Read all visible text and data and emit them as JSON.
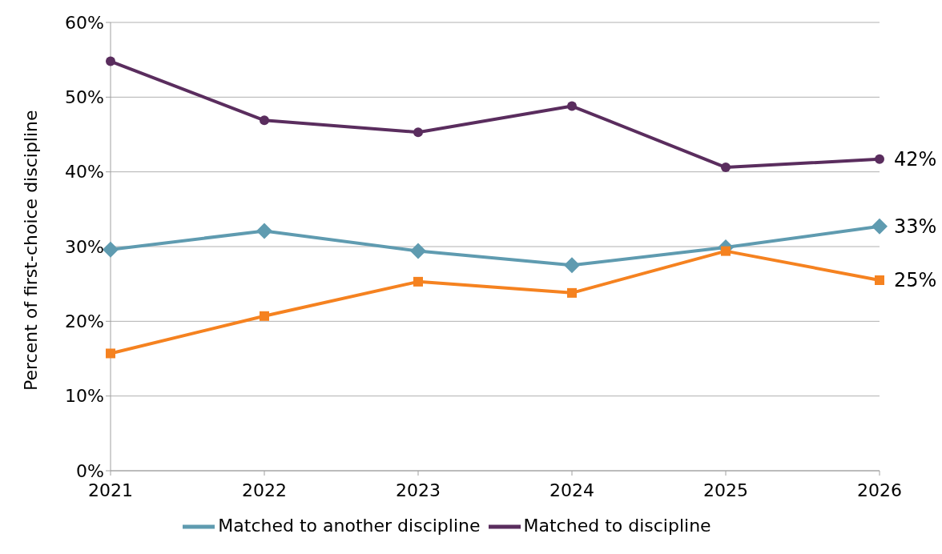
{
  "chart_data": {
    "type": "line",
    "ylabel": "Percent of first-choice discipline",
    "categories": [
      "2021",
      "2022",
      "2023",
      "2024",
      "2025",
      "2026"
    ],
    "series": [
      {
        "name": "Matched to another discipline",
        "color": "#5f9bb0",
        "marker": "diamond",
        "values": [
          29.6,
          32.1,
          29.4,
          27.5,
          29.9,
          32.7
        ],
        "value_labels": [
          null,
          null,
          null,
          null,
          null,
          "33%"
        ]
      },
      {
        "name": "Matched to discipline",
        "color": "#5a2d5e",
        "marker": "circle",
        "values": [
          54.8,
          46.9,
          45.3,
          48.8,
          40.6,
          41.7
        ],
        "value_labels": [
          null,
          null,
          null,
          null,
          null,
          "42%"
        ]
      },
      {
        "color": "#f58220",
        "marker": "square",
        "values": [
          15.7,
          20.7,
          25.3,
          23.8,
          29.4,
          25.5
        ],
        "value_labels": [
          null,
          null,
          null,
          null,
          null,
          "25%"
        ]
      }
    ],
    "ylim": [
      0,
      60
    ],
    "yticks": [
      {
        "value": 0,
        "label": "0%"
      },
      {
        "value": 10,
        "label": "10%"
      },
      {
        "value": 20,
        "label": "20%"
      },
      {
        "value": 30,
        "label": "30%"
      },
      {
        "value": 40,
        "label": "40%"
      },
      {
        "value": 50,
        "label": "50%"
      },
      {
        "value": 60,
        "label": "60%"
      }
    ],
    "grid": "y",
    "legend": "bottom",
    "line_style": "solid"
  }
}
